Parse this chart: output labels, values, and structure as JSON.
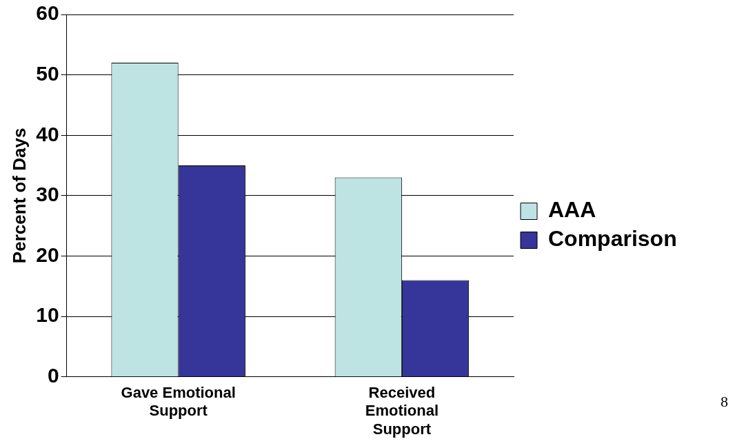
{
  "chart_data": {
    "type": "bar",
    "categories": [
      "Gave Emotional Support",
      "Received Emotional Support"
    ],
    "series": [
      {
        "name": "AAA",
        "color": "#bde3e3",
        "values": [
          52,
          33
        ]
      },
      {
        "name": "Comparison",
        "color": "#35359a",
        "values": [
          35,
          16
        ]
      }
    ],
    "ylabel": "Percent of Days",
    "ylim": [
      0,
      60
    ],
    "yticks": [
      0,
      10,
      20,
      30,
      40,
      50,
      60
    ],
    "grid": "y",
    "legend": "right",
    "annotations": [
      "8"
    ]
  }
}
